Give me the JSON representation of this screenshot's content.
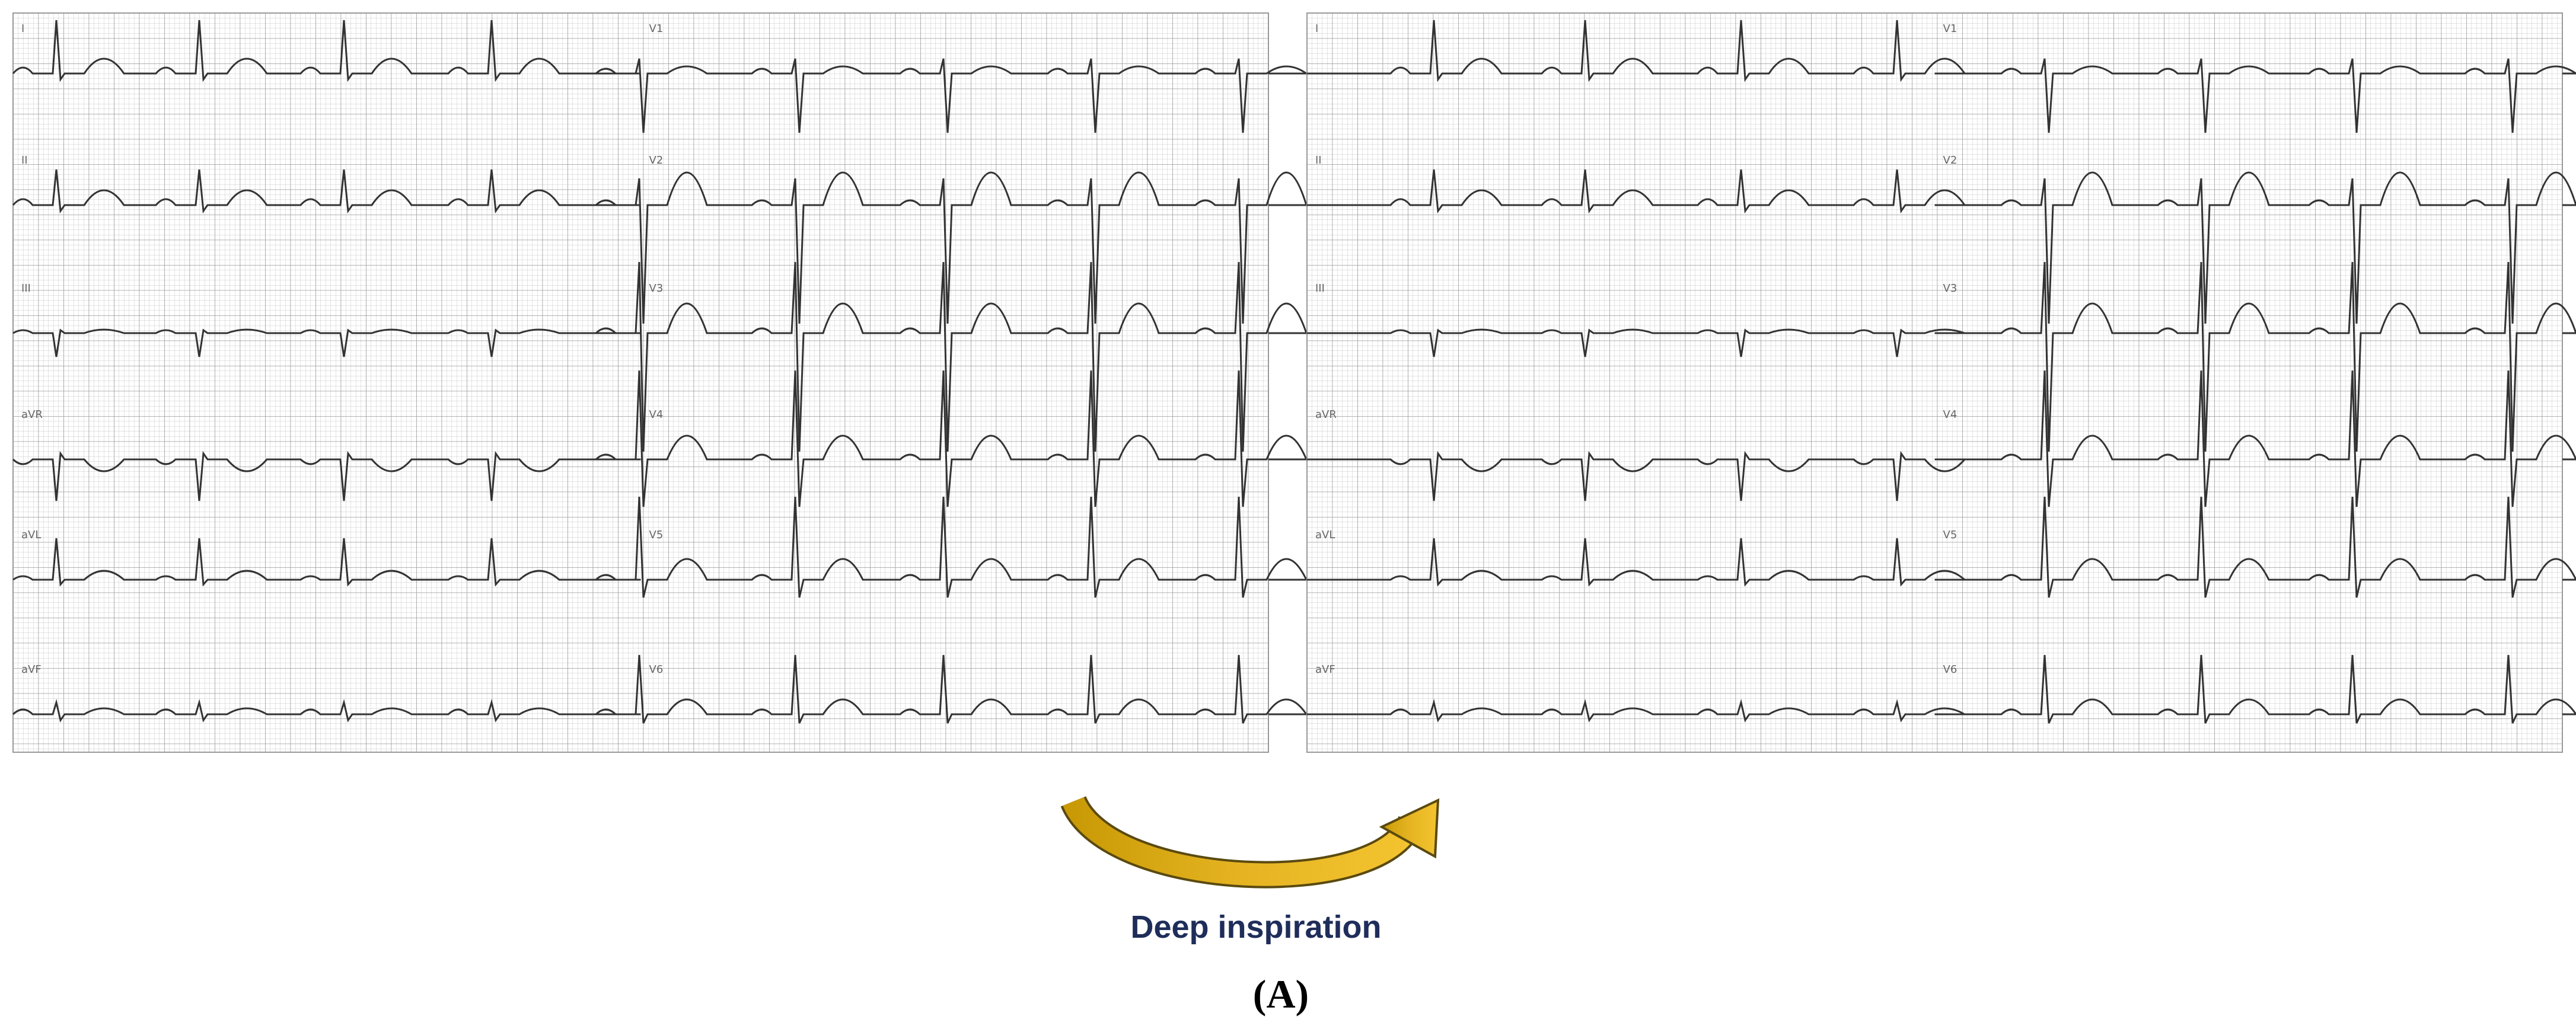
{
  "figure": {
    "panels": [
      {
        "leads": [
          "I",
          "II",
          "III",
          "aVR",
          "aVL",
          "aVF",
          "V1",
          "V2",
          "V3",
          "V4",
          "V5",
          "V6"
        ]
      },
      {
        "leads": [
          "I",
          "II",
          "III",
          "aVR",
          "aVL",
          "aVF",
          "V1",
          "V2",
          "V3",
          "V4",
          "V5",
          "V6"
        ]
      }
    ],
    "caption": "Deep inspiration",
    "label": "(A)"
  }
}
